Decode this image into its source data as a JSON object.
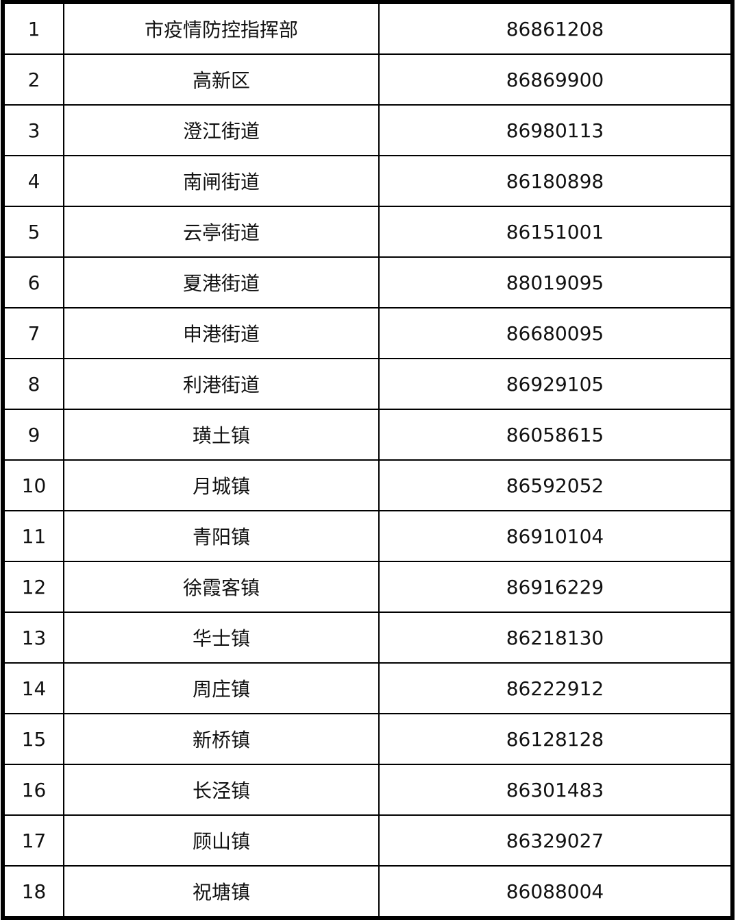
{
  "rows": [
    {
      "no": "1",
      "name": "市疫情防控指挥部",
      "phone": "86861208"
    },
    {
      "no": "2",
      "name": "高新区",
      "phone": "86869900"
    },
    {
      "no": "3",
      "name": "澄江街道",
      "phone": "86980113"
    },
    {
      "no": "4",
      "name": "南闸街道",
      "phone": "86180898"
    },
    {
      "no": "5",
      "name": "云亭街道",
      "phone": "86151001"
    },
    {
      "no": "6",
      "name": "夏港街道",
      "phone": "88019095"
    },
    {
      "no": "7",
      "name": "申港街道",
      "phone": "86680095"
    },
    {
      "no": "8",
      "name": "利港街道",
      "phone": "86929105"
    },
    {
      "no": "9",
      "name": "璜土镇",
      "phone": "86058615"
    },
    {
      "no": "10",
      "name": "月城镇",
      "phone": "86592052"
    },
    {
      "no": "11",
      "name": "青阳镇",
      "phone": "86910104"
    },
    {
      "no": "12",
      "name": "徐霞客镇",
      "phone": "86916229"
    },
    {
      "no": "13",
      "name": "华士镇",
      "phone": "86218130"
    },
    {
      "no": "14",
      "name": "周庄镇",
      "phone": "86222912"
    },
    {
      "no": "15",
      "name": "新桥镇",
      "phone": "86128128"
    },
    {
      "no": "16",
      "name": "长泾镇",
      "phone": "86301483"
    },
    {
      "no": "17",
      "name": "顾山镇",
      "phone": "86329027"
    },
    {
      "no": "18",
      "name": "祝塘镇",
      "phone": "86088004"
    }
  ]
}
